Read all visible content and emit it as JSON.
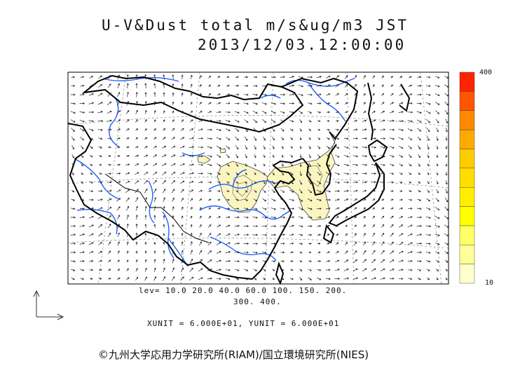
{
  "title": {
    "line1": "U-V&Dust total m/s&ug/m3 JST",
    "line2": "2013/12/03.12:00:00"
  },
  "legend": {
    "lev_line1": "lev= 10.0 20.0 40.0 60.0 100. 150. 200.",
    "lev_line2": "300. 400.",
    "units": "XUNIT = 6.000E+01, YUNIT = 6.000E+01",
    "levels": [
      10,
      20,
      40,
      60,
      100,
      150,
      200,
      300,
      400
    ]
  },
  "colorbar": {
    "max_label": "400",
    "min_label": "10",
    "colors": [
      "#ffffcc",
      "#ffff99",
      "#ffff66",
      "#ffff00",
      "#ffee00",
      "#ffdd00",
      "#ffcc00",
      "#ffaa00",
      "#ff8800",
      "#ff5500",
      "#ff2200"
    ]
  },
  "copyright": "©九州大学応用力学研究所(RIAM)/国立環境研究所(NIES)",
  "colors": {
    "coast": "#000000",
    "river": "#1f5fff",
    "dust_low": "#fbf6c0",
    "grid": "#888888"
  }
}
